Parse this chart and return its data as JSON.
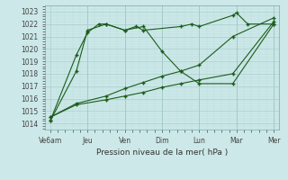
{
  "xlabel": "Pression niveau de la mer( hPa )",
  "bg_color": "#cce8e8",
  "grid_color_major": "#aacccc",
  "grid_color_minor": "#bbdddd",
  "line_color": "#1a5c1a",
  "ylim": [
    1013.5,
    1023.5
  ],
  "yticks": [
    1014,
    1015,
    1016,
    1017,
    1018,
    1019,
    1020,
    1021,
    1022,
    1023
  ],
  "x_labels": [
    "Ve6am",
    "Jeu",
    "Ven",
    "Dim",
    "Lun",
    "Mar",
    "Mer"
  ],
  "x_positions": [
    0,
    1,
    2,
    3,
    4,
    5,
    6
  ],
  "line1_x": [
    0,
    0.7,
    1.0,
    1.3,
    1.5,
    2.0,
    2.3,
    2.5,
    3.5,
    3.8,
    4.0,
    4.9,
    5.0,
    5.3,
    6.0
  ],
  "line1_y": [
    1014.2,
    1019.5,
    1021.3,
    1022.0,
    1022.0,
    1021.5,
    1021.8,
    1021.5,
    1021.8,
    1022.0,
    1021.8,
    1022.7,
    1022.9,
    1022.0,
    1022.0
  ],
  "line2_x": [
    0,
    0.7,
    1.0,
    1.5,
    2.0,
    2.5,
    3.0,
    3.5,
    4.0,
    4.9,
    6.0
  ],
  "line2_y": [
    1014.2,
    1018.2,
    1021.5,
    1022.0,
    1021.5,
    1021.8,
    1019.8,
    1018.2,
    1017.2,
    1017.2,
    1022.0
  ],
  "line3_x": [
    0,
    0.7,
    1.5,
    2.0,
    2.5,
    3.0,
    3.5,
    4.0,
    4.9,
    6.0
  ],
  "line3_y": [
    1014.5,
    1015.6,
    1016.2,
    1016.8,
    1017.3,
    1017.8,
    1018.2,
    1018.7,
    1021.0,
    1022.5
  ],
  "line4_x": [
    0,
    0.7,
    1.5,
    2.0,
    2.5,
    3.0,
    3.5,
    4.0,
    4.9,
    6.0
  ],
  "line4_y": [
    1014.5,
    1015.5,
    1015.9,
    1016.2,
    1016.5,
    1016.9,
    1017.2,
    1017.5,
    1018.0,
    1022.2
  ]
}
